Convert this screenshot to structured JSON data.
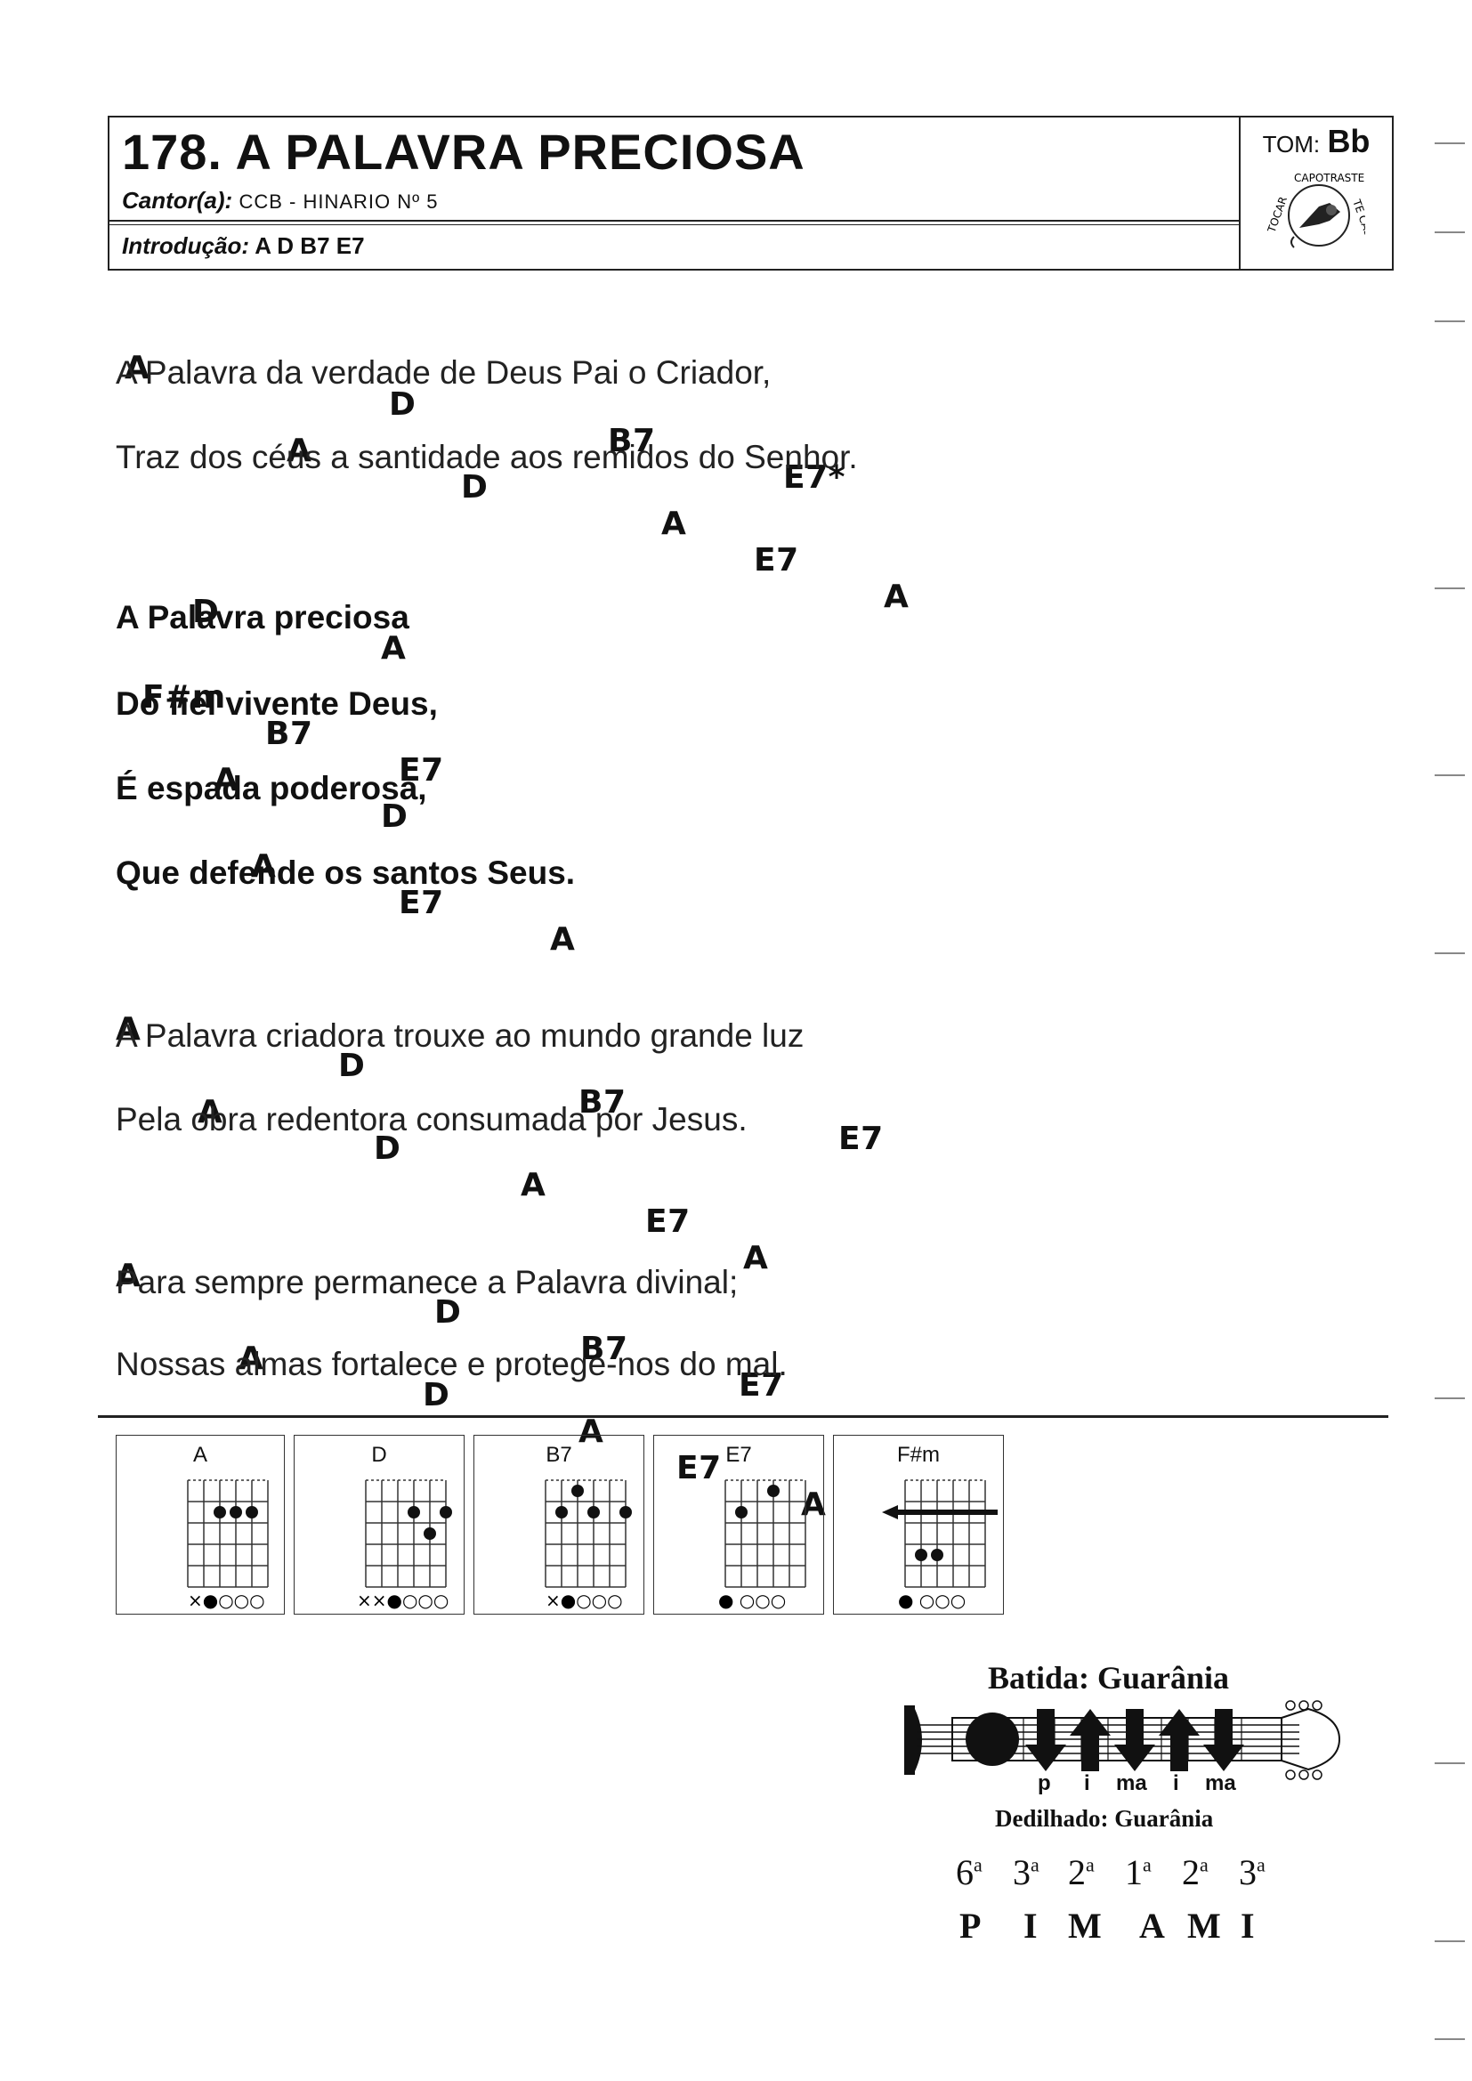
{
  "header": {
    "title": "178. A PALAVRA PRECIOSA",
    "singer_label": "Cantor(a):",
    "singer_value": "CCB - HINARIO Nº 5",
    "intro_label": "Introdução:",
    "intro_value": "A D B7 E7",
    "tom_label": "TOM:",
    "tom_value": "Bb",
    "logo_text": "TOCAR CAPOTRASTE TE CASA"
  },
  "lyrics": {
    "v1_c1": [
      "A",
      "D",
      "B7",
      "E7*"
    ],
    "v1_l1": "A Palavra da verdade de Deus Pai o Criador,",
    "v1_c2": [
      "A",
      "D",
      "A",
      "E7",
      "A"
    ],
    "v1_l2": "Traz dos céus a santidade aos remidos do Senhor.",
    "r_c1": [
      "D",
      "A"
    ],
    "r_l1": "A Palavra preciosa",
    "r_c2": [
      "F#m",
      "B7",
      "E7"
    ],
    "r_l2": "Do fiel vivente Deus,",
    "r_c3": [
      "A",
      "D"
    ],
    "r_l3": "É espada poderosa,",
    "r_c4": [
      "A",
      "E7",
      "A"
    ],
    "r_l4": "Que defende os santos Seus.",
    "v2_c1": [
      "A",
      "D",
      "B7",
      "E7"
    ],
    "v2_l1": "A Palavra criadora trouxe ao mundo grande luz",
    "v2_c2": [
      "A",
      "D",
      "A",
      "E7",
      "A"
    ],
    "v2_l2": "Pela obra redentora consumada por Jesus.",
    "v3_c1": [
      "A",
      "D",
      "B7",
      "E7"
    ],
    "v3_l1": "Para sempre permanece a Palavra divinal;",
    "v3_c2": [
      "A",
      "D",
      "A",
      "E7",
      "A"
    ],
    "v3_l2": "Nossas almas fortalece e protege-nos do mal."
  },
  "diagrams": [
    {
      "name": "A",
      "strings": "×●○○○"
    },
    {
      "name": "D",
      "strings": "××●○○○"
    },
    {
      "name": "B7",
      "strings": "×●○○○"
    },
    {
      "name": "E7",
      "strings": "● ○○○"
    },
    {
      "name": "F#m",
      "strings": "● ○○○"
    }
  ],
  "batida": {
    "title": "Batida: Guarânia",
    "fingers": [
      "p",
      "i",
      "ma",
      "i",
      "ma"
    ]
  },
  "dedilhado": {
    "title": "Dedilhado: Guarânia",
    "strings": [
      "6",
      "3",
      "2",
      "1",
      "2",
      "3"
    ],
    "ordinal": "a",
    "pattern": [
      "P",
      "I",
      "M",
      "A",
      "M",
      "I"
    ]
  }
}
